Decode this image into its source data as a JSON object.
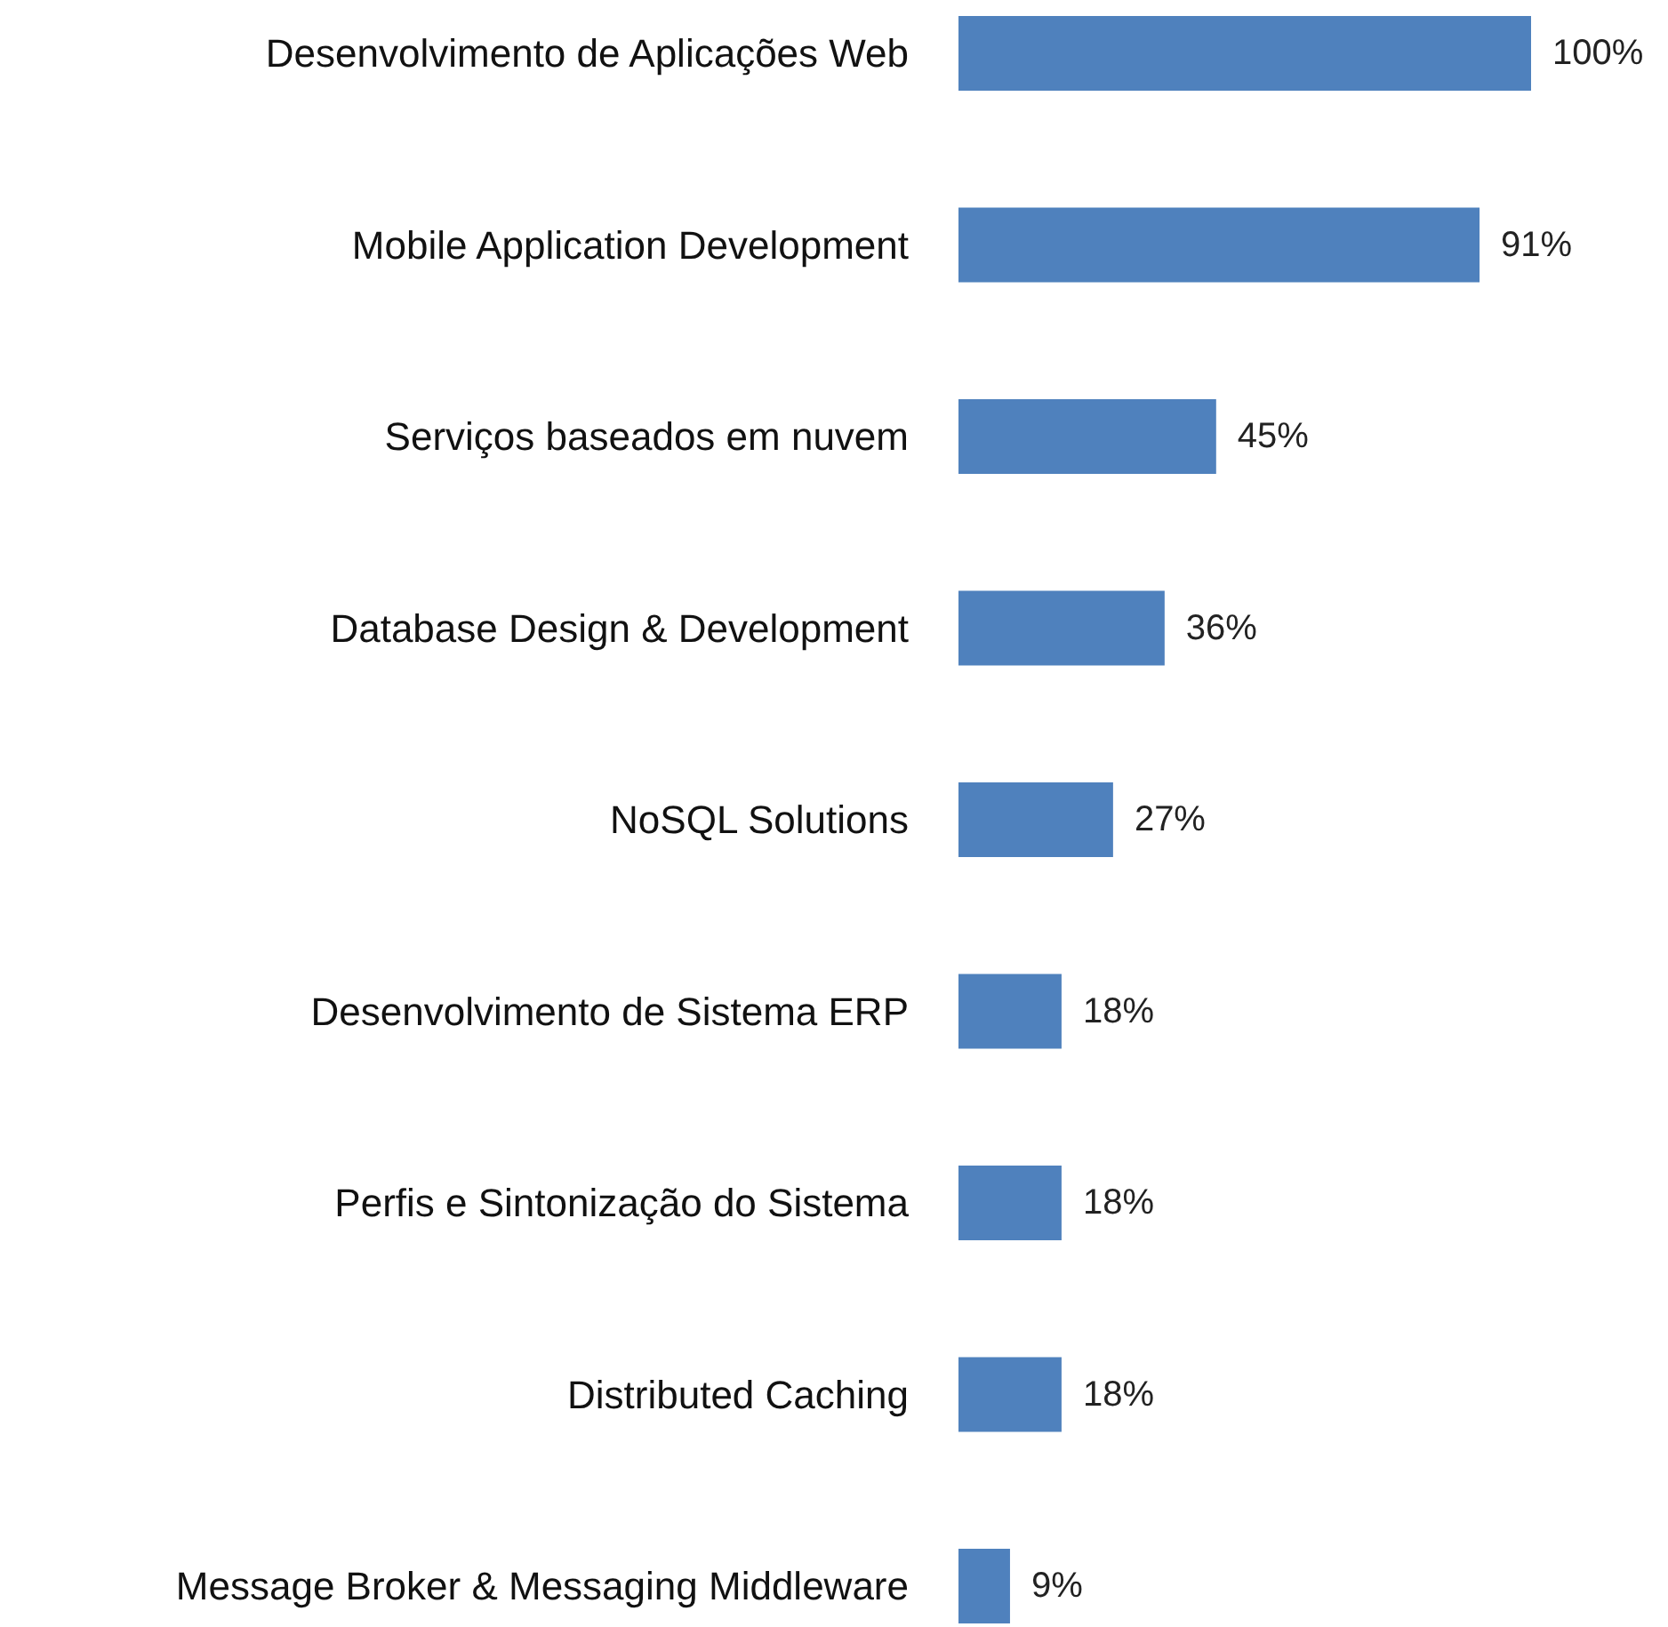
{
  "chart_data": {
    "type": "bar",
    "orientation": "horizontal",
    "categories": [
      "Desenvolvimento de Aplicações Web",
      "Mobile Application Development",
      "Serviços baseados em nuvem",
      "Database Design & Development",
      "NoSQL Solutions",
      "Desenvolvimento de Sistema ERP",
      "Perfis e Sintonização do Sistema",
      "Distributed Caching",
      "Message Broker & Messaging Middleware"
    ],
    "values": [
      100,
      91,
      45,
      36,
      27,
      18,
      18,
      18,
      9
    ],
    "value_labels": [
      "100%",
      "91%",
      "45%",
      "36%",
      "27%",
      "18%",
      "18%",
      "18%",
      "9%"
    ],
    "color": "#4f81bd"
  }
}
